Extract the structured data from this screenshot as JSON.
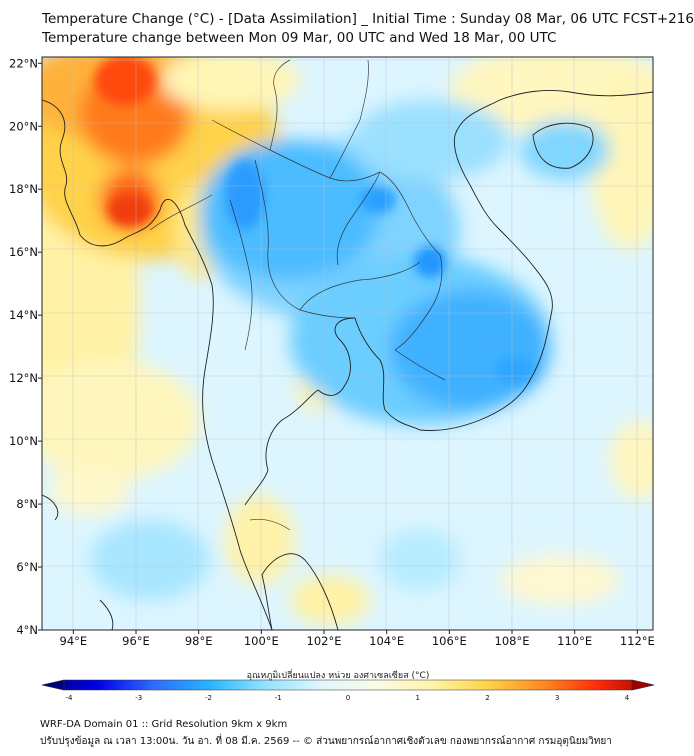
{
  "header": {
    "title_line1": "Temperature Change (°C) - [Data Assimilation] _ Initial Time : Sunday 08 Mar, 06 UTC FCST+216",
    "title_line2": "Temperature change between Mon 09 Mar, 00 UTC and Wed 18 Mar, 00 UTC"
  },
  "map": {
    "lon_range": [
      93,
      112.5
    ],
    "lat_range": [
      4,
      22.2
    ],
    "lon_ticks": [
      {
        "value": 94,
        "label": "94°E"
      },
      {
        "value": 96,
        "label": "96°E"
      },
      {
        "value": 98,
        "label": "98°E"
      },
      {
        "value": 100,
        "label": "100°E"
      },
      {
        "value": 102,
        "label": "102°E"
      },
      {
        "value": 104,
        "label": "104°E"
      },
      {
        "value": 106,
        "label": "106°E"
      },
      {
        "value": 108,
        "label": "108°E"
      },
      {
        "value": 110,
        "label": "110°E"
      },
      {
        "value": 112,
        "label": "112°E"
      }
    ],
    "lat_ticks": [
      {
        "value": 22,
        "label": "22°N"
      },
      {
        "value": 20,
        "label": "20°N"
      },
      {
        "value": 18,
        "label": "18°N"
      },
      {
        "value": 16,
        "label": "16°N"
      },
      {
        "value": 14,
        "label": "14°N"
      },
      {
        "value": 12,
        "label": "12°N"
      },
      {
        "value": 10,
        "label": "10°N"
      },
      {
        "value": 8,
        "label": "8°N"
      },
      {
        "value": 6,
        "label": "6°N"
      },
      {
        "value": 4,
        "label": "4°N"
      }
    ]
  },
  "colorbar": {
    "title": "อุณหภูมิเปลี่ยนแปลง หน่วย องศาเซลเซียส (°C)",
    "min": -4,
    "max": 4,
    "labels": [
      "-4",
      "-3",
      "-2",
      "-1",
      "0",
      "1",
      "2",
      "3",
      "4"
    ],
    "colors": [
      "#00007a",
      "#0000e6",
      "#2f6bff",
      "#28b4ff",
      "#8fe3ff",
      "#dff6ff",
      "#fbfbe6",
      "#fff4a8",
      "#ffd34a",
      "#ff8a1f",
      "#ff2a0a",
      "#a00000"
    ]
  },
  "footer": {
    "line1": "WRF-DA Domain 01 :: Grid Resolution 9km x 9km",
    "line2": "ปรับปรุงข้อมูล ณ เวลา 13:00น. วัน อา. ที่ 08 มี.ค. 2569 -- © ส่วนพยากรณ์อากาศเชิงตัวเลข กองพยากรณ์อากาศ กรมอุตุนิยมวิทยา"
  }
}
